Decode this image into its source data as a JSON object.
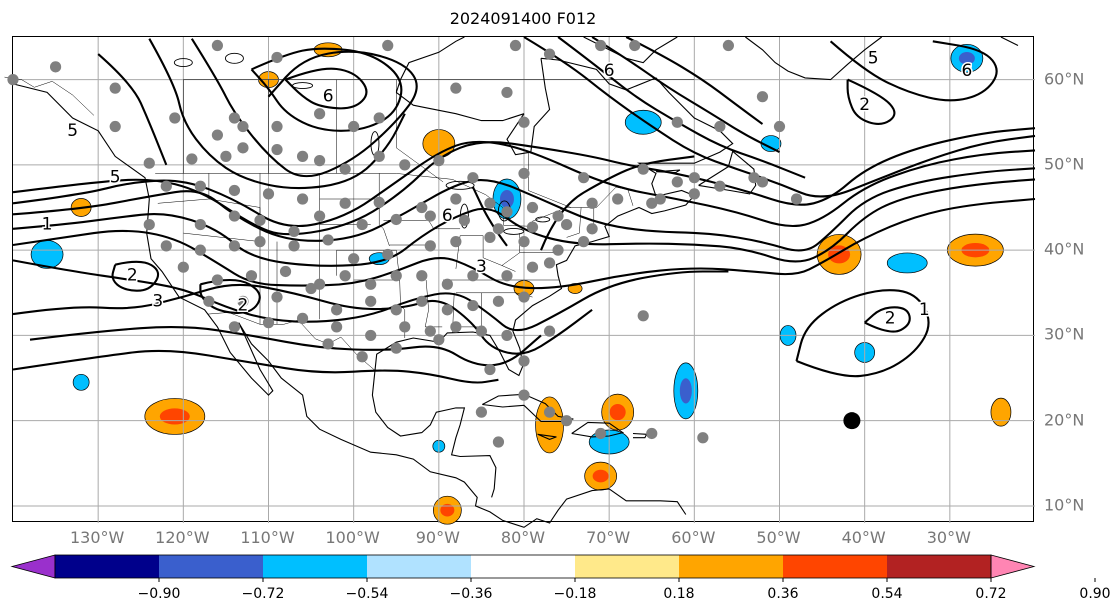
{
  "title": "2024091400 F012",
  "lon_labels": [
    "130°W",
    "120°W",
    "110°W",
    "100°W",
    "90°W",
    "80°W",
    "70°W",
    "60°W",
    "50°W",
    "40°W",
    "30°W"
  ],
  "lon_values": [
    -130,
    -120,
    -110,
    -100,
    -90,
    -80,
    -70,
    -60,
    -50,
    -40,
    -30
  ],
  "lat_labels": [
    "60°N",
    "50°N",
    "40°N",
    "30°N",
    "20°N",
    "10°N"
  ],
  "lat_values": [
    60,
    50,
    40,
    30,
    20,
    10
  ],
  "extent": {
    "lon_min": -140,
    "lon_max": -20,
    "lat_min": 8,
    "lat_max": 65
  },
  "colorbar": {
    "ticks": [
      "−0.90",
      "−0.72",
      "−0.54",
      "−0.36",
      "−0.18",
      "0.18",
      "0.36",
      "0.54",
      "0.72",
      "0.90"
    ],
    "colors": [
      "#9a30cc",
      "#00008b",
      "#3a5fcd",
      "#00bfff",
      "#b0e2ff",
      "#ffffff",
      "#ffe98a",
      "#ffa500",
      "#ff4500",
      "#b22222",
      "#ff85b3"
    ]
  },
  "contour_labels": [
    {
      "text": "5",
      "lon": -133,
      "lat": 54
    },
    {
      "text": "5",
      "lon": -128,
      "lat": 48.5
    },
    {
      "text": "1",
      "lon": -136,
      "lat": 43
    },
    {
      "text": "2",
      "lon": -126,
      "lat": 37
    },
    {
      "text": "3",
      "lon": -123,
      "lat": 34
    },
    {
      "text": "2",
      "lon": -113,
      "lat": 33.5
    },
    {
      "text": "6",
      "lon": -103,
      "lat": 58
    },
    {
      "text": "6",
      "lon": -89,
      "lat": 44
    },
    {
      "text": "3",
      "lon": -85,
      "lat": 38
    },
    {
      "text": "6",
      "lon": -70,
      "lat": 61
    },
    {
      "text": "5",
      "lon": -39,
      "lat": 62.5
    },
    {
      "text": "6",
      "lon": -28,
      "lat": 61
    },
    {
      "text": "2",
      "lon": -40,
      "lat": 57
    },
    {
      "text": "2",
      "lon": -37,
      "lat": 32
    },
    {
      "text": "1",
      "lon": -33,
      "lat": 33
    }
  ],
  "black_marker": {
    "lon": -41.5,
    "lat": 20
  }
}
